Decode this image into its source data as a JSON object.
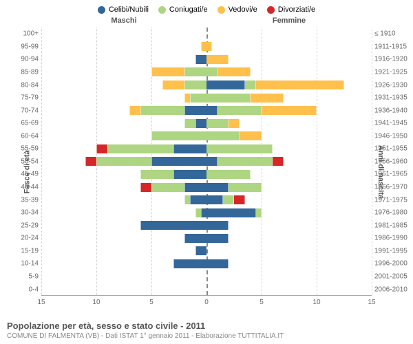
{
  "legend": [
    {
      "label": "Celibi/Nubili",
      "color": "#336699"
    },
    {
      "label": "Coniugati/e",
      "color": "#aed581"
    },
    {
      "label": "Vedovi/e",
      "color": "#ffc04c"
    },
    {
      "label": "Divorziati/e",
      "color": "#d62728"
    }
  ],
  "header_left": "Maschi",
  "header_right": "Femmine",
  "y_title_left": "Fasce di età",
  "y_title_right": "Anni di nascita",
  "x_max": 15,
  "x_ticks": [
    15,
    10,
    5,
    0,
    5,
    10,
    15
  ],
  "footer_title": "Popolazione per età, sesso e stato civile - 2011",
  "footer_sub": "COMUNE DI FALMENTA (VB) - Dati ISTAT 1° gennaio 2011 - Elaborazione TUTTITALIA.IT",
  "colors": {
    "celibi": "#336699",
    "coniugati": "#aed581",
    "vedovi": "#ffc04c",
    "divorziati": "#d62728",
    "grid": "#cccccc",
    "center": "#888888",
    "background": "#ffffff"
  },
  "rows": [
    {
      "age": "100+",
      "birth": "≤ 1910",
      "m": [
        0,
        0,
        0,
        0
      ],
      "f": [
        0,
        0,
        0,
        0
      ]
    },
    {
      "age": "95-99",
      "birth": "1911-1915",
      "m": [
        0,
        0,
        0.5,
        0
      ],
      "f": [
        0,
        0,
        0.5,
        0
      ]
    },
    {
      "age": "90-94",
      "birth": "1916-1920",
      "m": [
        1,
        0,
        0,
        0
      ],
      "f": [
        0,
        0,
        2,
        0
      ]
    },
    {
      "age": "85-89",
      "birth": "1921-1925",
      "m": [
        0,
        2,
        3,
        0
      ],
      "f": [
        0,
        1,
        3,
        0
      ]
    },
    {
      "age": "80-84",
      "birth": "1926-1930",
      "m": [
        0,
        2,
        2,
        0
      ],
      "f": [
        3.5,
        1,
        8,
        0
      ]
    },
    {
      "age": "75-79",
      "birth": "1931-1935",
      "m": [
        0,
        1.5,
        0.5,
        0
      ],
      "f": [
        0,
        4,
        3,
        0
      ]
    },
    {
      "age": "70-74",
      "birth": "1936-1940",
      "m": [
        2,
        4,
        1,
        0
      ],
      "f": [
        1,
        4,
        5,
        0
      ]
    },
    {
      "age": "65-69",
      "birth": "1941-1945",
      "m": [
        1,
        1,
        0,
        0
      ],
      "f": [
        0,
        2,
        1,
        0
      ]
    },
    {
      "age": "60-64",
      "birth": "1946-1950",
      "m": [
        0,
        5,
        0,
        0
      ],
      "f": [
        0,
        3,
        2,
        0
      ]
    },
    {
      "age": "55-59",
      "birth": "1951-1955",
      "m": [
        3,
        6,
        0,
        1
      ],
      "f": [
        0,
        6,
        0,
        0
      ]
    },
    {
      "age": "50-54",
      "birth": "1956-1960",
      "m": [
        5,
        5,
        0,
        1
      ],
      "f": [
        1,
        5,
        0,
        1
      ]
    },
    {
      "age": "45-49",
      "birth": "1961-1965",
      "m": [
        3,
        3,
        0,
        0
      ],
      "f": [
        0,
        4,
        0,
        0
      ]
    },
    {
      "age": "40-44",
      "birth": "1966-1970",
      "m": [
        2,
        3,
        0,
        1
      ],
      "f": [
        2,
        3,
        0,
        0
      ]
    },
    {
      "age": "35-39",
      "birth": "1971-1975",
      "m": [
        1.5,
        0.5,
        0,
        0
      ],
      "f": [
        1.5,
        1,
        0,
        1
      ]
    },
    {
      "age": "30-34",
      "birth": "1976-1980",
      "m": [
        0.5,
        0.5,
        0,
        0
      ],
      "f": [
        4.5,
        0.5,
        0,
        0
      ]
    },
    {
      "age": "25-29",
      "birth": "1981-1985",
      "m": [
        6,
        0,
        0,
        0
      ],
      "f": [
        2,
        0,
        0,
        0
      ]
    },
    {
      "age": "20-24",
      "birth": "1986-1990",
      "m": [
        2,
        0,
        0,
        0
      ],
      "f": [
        2,
        0,
        0,
        0
      ]
    },
    {
      "age": "15-19",
      "birth": "1991-1995",
      "m": [
        1,
        0,
        0,
        0
      ],
      "f": [
        0,
        0,
        0,
        0
      ]
    },
    {
      "age": "10-14",
      "birth": "1996-2000",
      "m": [
        3,
        0,
        0,
        0
      ],
      "f": [
        2,
        0,
        0,
        0
      ]
    },
    {
      "age": "5-9",
      "birth": "2001-2005",
      "m": [
        0,
        0,
        0,
        0
      ],
      "f": [
        0,
        0,
        0,
        0
      ]
    },
    {
      "age": "0-4",
      "birth": "2006-2010",
      "m": [
        0,
        0,
        0,
        0
      ],
      "f": [
        0,
        0,
        0,
        0
      ]
    }
  ]
}
